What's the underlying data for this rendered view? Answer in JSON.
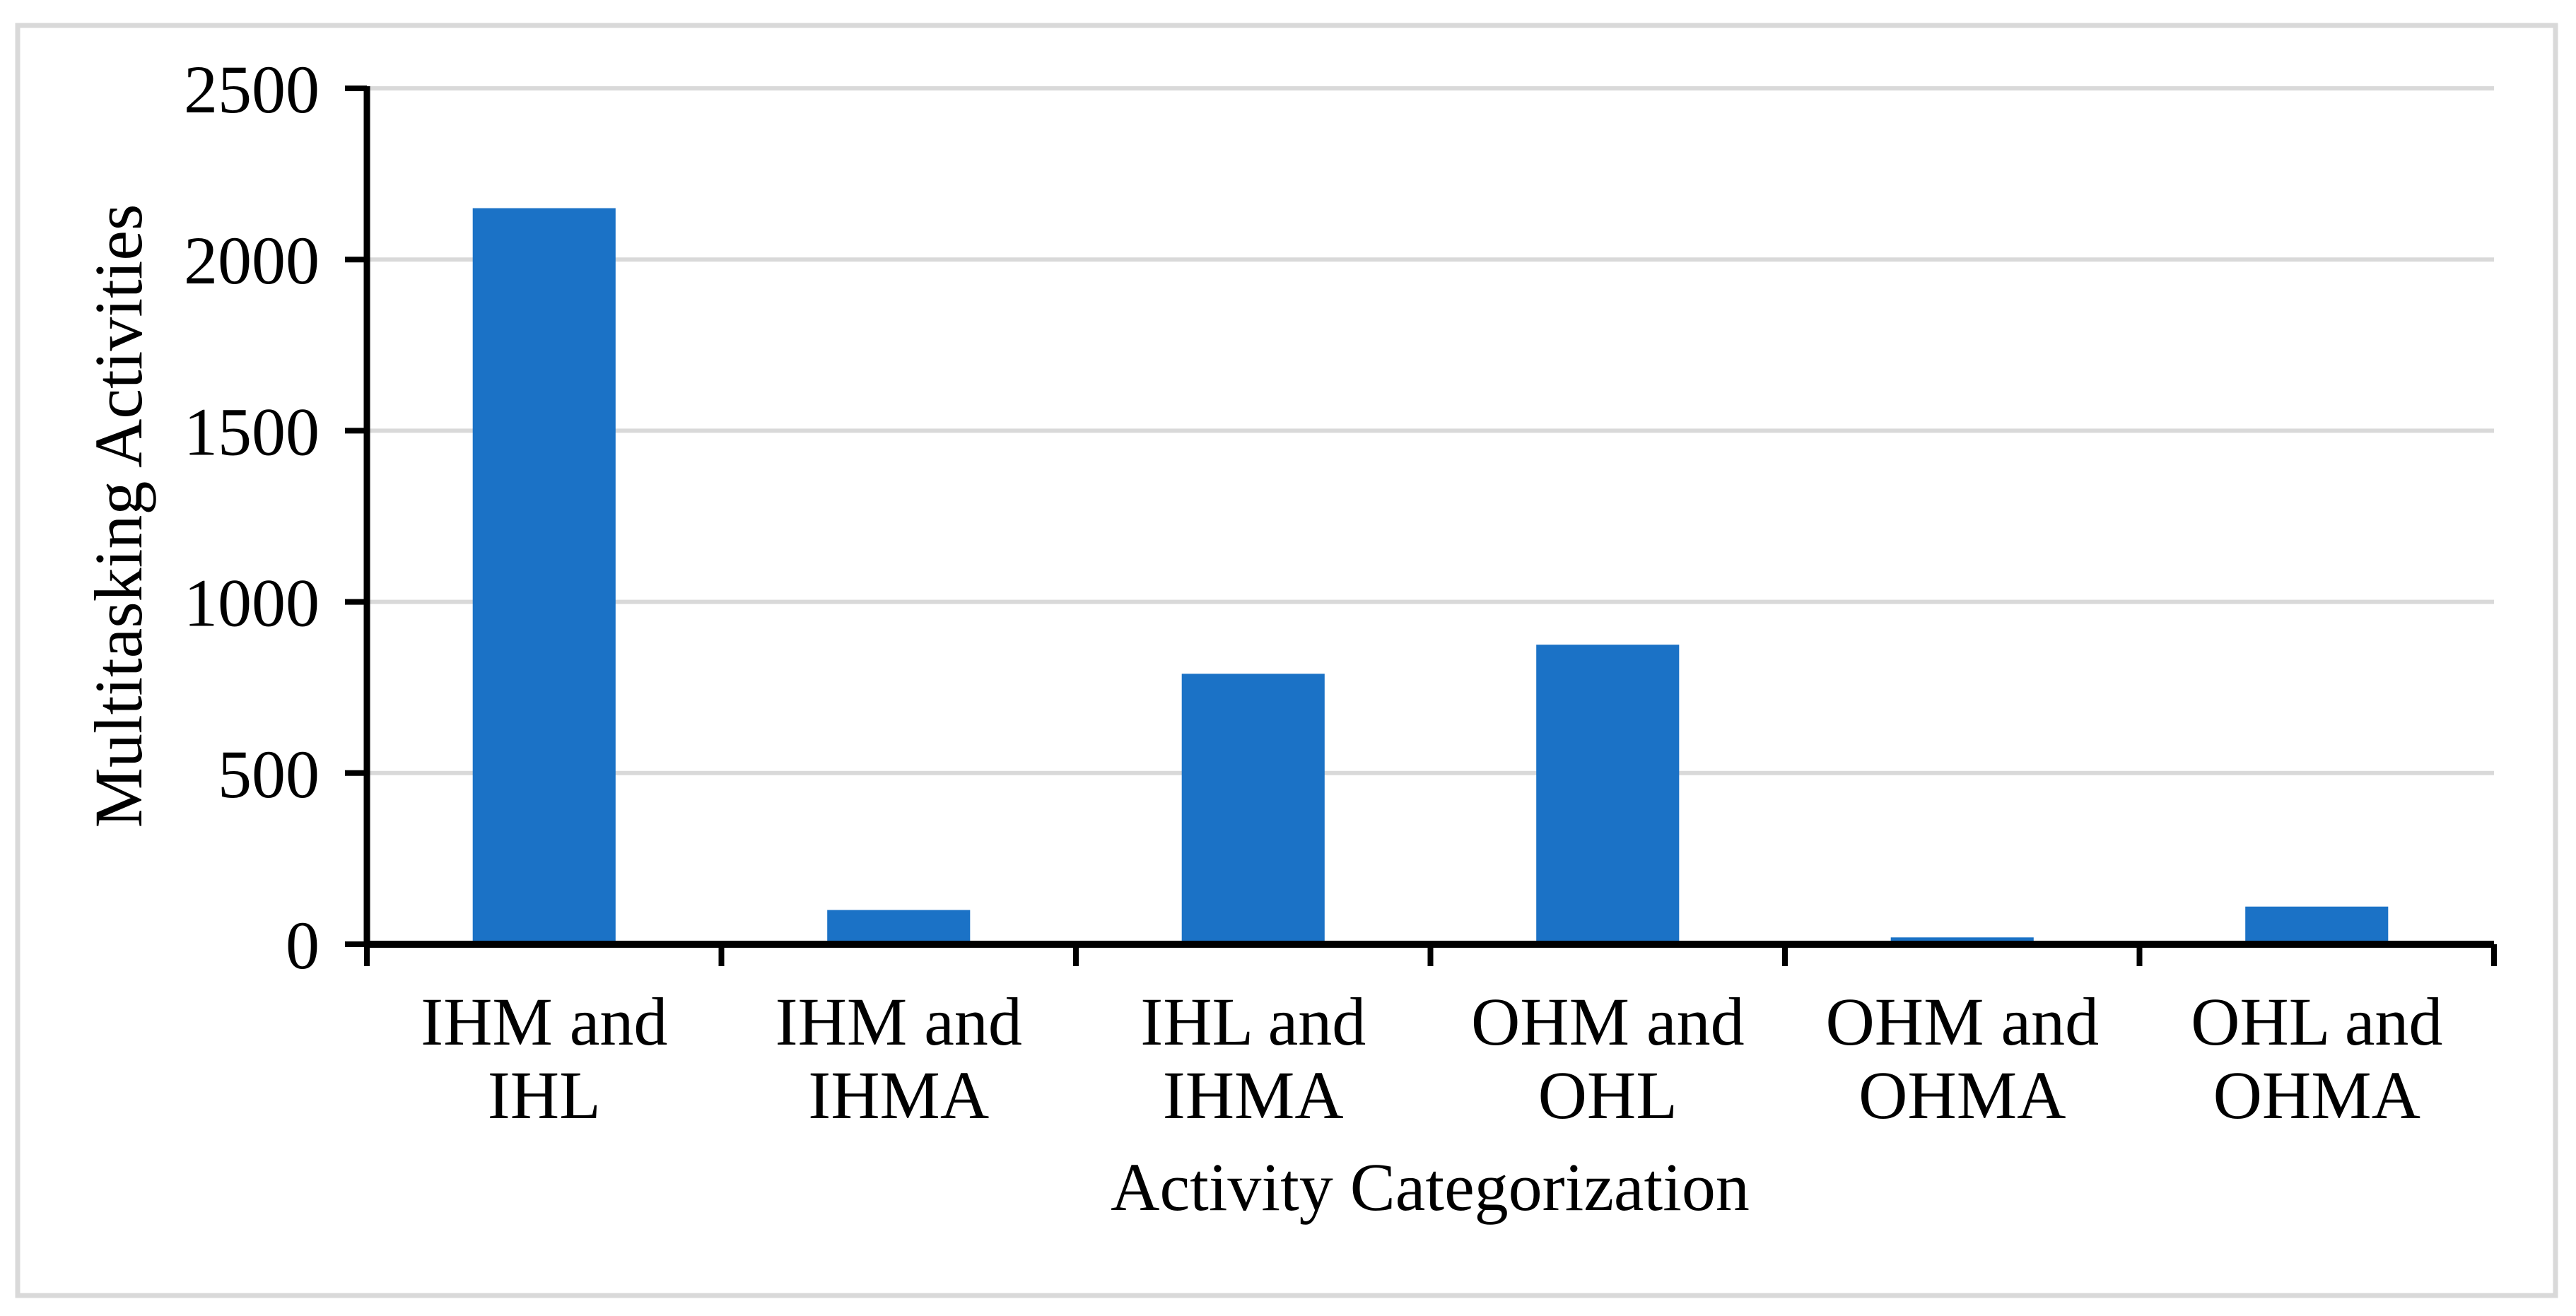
{
  "figure": {
    "kind": "embedded spreadsheet-style bar chart",
    "background": "#FFFFFF"
  },
  "chart_data": {
    "type": "bar",
    "title": "",
    "xlabel": "Activity Categorization",
    "ylabel": "Multitasking Activities",
    "categories": [
      "IHM and IHL",
      "IHM and IHMA",
      "IHL and IHMA",
      "OHM and OHL",
      "OHM and OHMA",
      "OHL and OHMA"
    ],
    "values": [
      2150,
      100,
      790,
      875,
      20,
      110
    ],
    "series": [
      {
        "name": "Multitasking Activities",
        "values": [
          2150,
          100,
          790,
          875,
          20,
          110
        ]
      }
    ],
    "ylim": [
      0,
      2500
    ],
    "yticks": [
      0,
      500,
      1000,
      1500,
      2000,
      2500
    ],
    "ytick_labels": [
      "0",
      "500",
      "1000",
      "1500",
      "2000",
      "2500"
    ],
    "grid": "horizontal",
    "legend": "none",
    "bar_gap_ratio": 0.597,
    "colors": {
      "bar": "#1B72C6",
      "gridline": "#D9D9D9",
      "frame_border": "#D9D9D9",
      "axis": "#000000",
      "text": "#000000",
      "background": "#FFFFFF"
    }
  }
}
